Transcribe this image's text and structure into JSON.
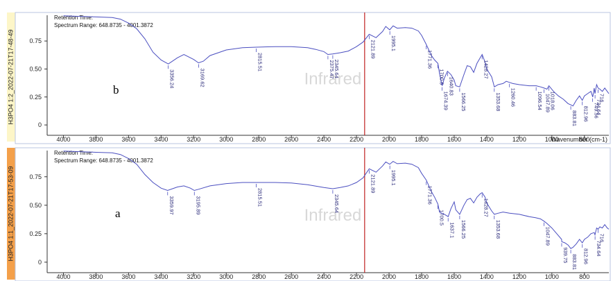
{
  "chart_data": [
    {
      "type": "line",
      "panel_id": "H3PO4 1:2_2022-07-21T17-48-49",
      "sample_label": "b",
      "header_line1": "Retention Time:",
      "header_line2": "Spectrum Range: 648.8735 - 4001.3872",
      "watermark": "Infrared",
      "xlabel": "Wavenumber (cm-1)",
      "xlim": [
        4100,
        650
      ],
      "ylim": [
        -0.08,
        0.98
      ],
      "x_ticks": [
        4000,
        3800,
        3600,
        3400,
        3200,
        3000,
        2800,
        2600,
        2400,
        2200,
        2000,
        1800,
        1600,
        1400,
        1200,
        1000,
        800
      ],
      "y_ticks": [
        "0",
        "0.25",
        "0.50",
        "0.75"
      ],
      "y_tick_values": [
        0,
        0.25,
        0.5,
        0.75
      ],
      "cursor_x": 2150,
      "series": [
        {
          "color": "#4a4ec0",
          "x": [
            4000,
            3900,
            3800,
            3700,
            3650,
            3600,
            3550,
            3500,
            3450,
            3400,
            3356,
            3300,
            3260,
            3200,
            3170,
            3140,
            3100,
            3000,
            2900,
            2816,
            2700,
            2600,
            2500,
            2450,
            2400,
            2376,
            2346,
            2300,
            2250,
            2200,
            2160,
            2122,
            2080,
            2040,
            2020,
            1996,
            1975,
            1950,
            1900,
            1860,
            1820,
            1800,
            1772,
            1740,
            1720,
            1700,
            1690,
            1674,
            1660,
            1641,
            1620,
            1600,
            1590,
            1566,
            1540,
            1520,
            1500,
            1480,
            1460,
            1440,
            1428,
            1410,
            1400,
            1370,
            1353,
            1330,
            1300,
            1280,
            1260,
            1240,
            1200,
            1140,
            1096,
            1070,
            1048,
            1030,
            1018,
            990,
            960,
            930,
            900,
            884,
            870,
            850,
            830,
            813,
            800,
            780,
            760,
            749,
            740,
            735,
            725,
            716,
            705,
            690,
            675,
            660,
            650
          ],
          "y": [
            0.975,
            0.97,
            0.965,
            0.96,
            0.945,
            0.91,
            0.86,
            0.77,
            0.65,
            0.58,
            0.545,
            0.6,
            0.63,
            0.585,
            0.555,
            0.57,
            0.62,
            0.67,
            0.69,
            0.695,
            0.7,
            0.7,
            0.69,
            0.675,
            0.655,
            0.63,
            0.635,
            0.645,
            0.66,
            0.7,
            0.74,
            0.81,
            0.78,
            0.835,
            0.88,
            0.85,
            0.885,
            0.865,
            0.87,
            0.865,
            0.84,
            0.8,
            0.72,
            0.62,
            0.58,
            0.55,
            0.46,
            0.35,
            0.42,
            0.48,
            0.45,
            0.4,
            0.35,
            0.34,
            0.45,
            0.53,
            0.52,
            0.47,
            0.55,
            0.6,
            0.63,
            0.56,
            0.5,
            0.43,
            0.34,
            0.36,
            0.37,
            0.39,
            0.38,
            0.37,
            0.36,
            0.35,
            0.35,
            0.34,
            0.33,
            0.32,
            0.35,
            0.3,
            0.26,
            0.23,
            0.19,
            0.18,
            0.17,
            0.22,
            0.26,
            0.22,
            0.26,
            0.28,
            0.3,
            0.25,
            0.33,
            0.28,
            0.36,
            0.33,
            0.32,
            0.3,
            0.33,
            0.3,
            0.28
          ]
        }
      ],
      "annotations": [
        {
          "label": "3356.24",
          "x": 3356.24,
          "y": 0.545
        },
        {
          "label": "3169.62",
          "x": 3169.62,
          "y": 0.555
        },
        {
          "label": "2815.51",
          "x": 2815.51,
          "y": 0.695
        },
        {
          "label": "2375.47",
          "x": 2375.47,
          "y": 0.63
        },
        {
          "label": "2345.64",
          "x": 2345.64,
          "y": 0.635
        },
        {
          "label": "2121.89",
          "x": 2121.89,
          "y": 0.81
        },
        {
          "label": "1995.1",
          "x": 1995.1,
          "y": 0.85
        },
        {
          "label": "1771.36",
          "x": 1771.36,
          "y": 0.72
        },
        {
          "label": "1700.5",
          "x": 1700.5,
          "y": 0.55
        },
        {
          "label": "1674.39",
          "x": 1674.39,
          "y": 0.35
        },
        {
          "label": "1640.83",
          "x": 1640.83,
          "y": 0.48
        },
        {
          "label": "1566.25",
          "x": 1566.25,
          "y": 0.34
        },
        {
          "label": "1428.27",
          "x": 1428.27,
          "y": 0.63
        },
        {
          "label": "1353.68",
          "x": 1353.68,
          "y": 0.34
        },
        {
          "label": "1260.46",
          "x": 1260.46,
          "y": 0.38
        },
        {
          "label": "1096.54",
          "x": 1096.54,
          "y": 0.35
        },
        {
          "label": "1047.89",
          "x": 1047.89,
          "y": 0.33
        },
        {
          "label": "1018.06",
          "x": 1018.06,
          "y": 0.35
        },
        {
          "label": "883.81",
          "x": 883.81,
          "y": 0.18
        },
        {
          "label": "812.96",
          "x": 812.96,
          "y": 0.22
        },
        {
          "label": "749.56",
          "x": 749.56,
          "y": 0.25
        },
        {
          "label": "734.64",
          "x": 734.64,
          "y": 0.28
        },
        {
          "label": "716",
          "x": 716,
          "y": 0.33
        }
      ]
    },
    {
      "type": "line",
      "panel_id": "H3PO4 1:1_2022-07-21T17-53-09",
      "sample_label": "a",
      "header_line1": "Retention Time:",
      "header_line2": "Spectrum Range: 648.8735 - 4001.3872",
      "watermark": "Infrared",
      "xlabel": "",
      "xlim": [
        4100,
        650
      ],
      "ylim": [
        -0.08,
        0.98
      ],
      "x_ticks": [
        4000,
        3800,
        3600,
        3400,
        3200,
        3000,
        2800,
        2600,
        2400,
        2200,
        2000,
        1800,
        1600,
        1400,
        1200,
        1000,
        800
      ],
      "y_ticks": [
        "0",
        "0.25",
        "0.50",
        "0.75"
      ],
      "y_tick_values": [
        0,
        0.25,
        0.5,
        0.75
      ],
      "cursor_x": 2150,
      "series": [
        {
          "color": "#4a4ec0",
          "x": [
            4000,
            3900,
            3800,
            3700,
            3650,
            3600,
            3550,
            3500,
            3450,
            3400,
            3360,
            3300,
            3260,
            3220,
            3196,
            3170,
            3100,
            3000,
            2900,
            2816,
            2700,
            2600,
            2500,
            2400,
            2346,
            2300,
            2250,
            2200,
            2160,
            2122,
            2080,
            2040,
            2020,
            1996,
            1975,
            1950,
            1900,
            1860,
            1820,
            1800,
            1771,
            1740,
            1720,
            1700,
            1690,
            1660,
            1637,
            1620,
            1600,
            1590,
            1566,
            1540,
            1520,
            1500,
            1480,
            1460,
            1440,
            1428,
            1410,
            1400,
            1370,
            1353,
            1330,
            1300,
            1260,
            1200,
            1140,
            1100,
            1070,
            1048,
            1030,
            1000,
            970,
            940,
            939,
            920,
            900,
            884,
            870,
            850,
            830,
            813,
            800,
            780,
            760,
            740,
            735,
            725,
            716,
            705,
            690,
            675,
            660,
            650
          ],
          "y": [
            0.975,
            0.97,
            0.965,
            0.96,
            0.945,
            0.91,
            0.86,
            0.77,
            0.7,
            0.65,
            0.63,
            0.66,
            0.67,
            0.65,
            0.63,
            0.64,
            0.67,
            0.69,
            0.7,
            0.7,
            0.7,
            0.695,
            0.68,
            0.655,
            0.645,
            0.655,
            0.67,
            0.7,
            0.74,
            0.82,
            0.79,
            0.845,
            0.88,
            0.86,
            0.885,
            0.865,
            0.87,
            0.86,
            0.83,
            0.78,
            0.72,
            0.62,
            0.57,
            0.51,
            0.44,
            0.42,
            0.4,
            0.47,
            0.53,
            0.46,
            0.42,
            0.5,
            0.55,
            0.56,
            0.52,
            0.57,
            0.6,
            0.61,
            0.57,
            0.52,
            0.45,
            0.42,
            0.43,
            0.44,
            0.43,
            0.42,
            0.4,
            0.39,
            0.38,
            0.36,
            0.34,
            0.3,
            0.25,
            0.2,
            0.18,
            0.17,
            0.15,
            0.12,
            0.13,
            0.16,
            0.2,
            0.17,
            0.2,
            0.22,
            0.25,
            0.26,
            0.24,
            0.3,
            0.29,
            0.31,
            0.3,
            0.33,
            0.3,
            0.29
          ]
        }
      ],
      "annotations": [
        {
          "label": "3359.97",
          "x": 3359.97,
          "y": 0.63
        },
        {
          "label": "3195.89",
          "x": 3195.89,
          "y": 0.63
        },
        {
          "label": "2815.51",
          "x": 2815.51,
          "y": 0.7
        },
        {
          "label": "2345.64",
          "x": 2345.64,
          "y": 0.645
        },
        {
          "label": "2121.89",
          "x": 2121.89,
          "y": 0.82
        },
        {
          "label": "1995.1",
          "x": 1995.1,
          "y": 0.86
        },
        {
          "label": "1771.36",
          "x": 1771.36,
          "y": 0.72
        },
        {
          "label": "1700.5",
          "x": 1700.5,
          "y": 0.51
        },
        {
          "label": "1637.1",
          "x": 1637.1,
          "y": 0.4
        },
        {
          "label": "1566.25",
          "x": 1566.25,
          "y": 0.42
        },
        {
          "label": "1428.27",
          "x": 1428.27,
          "y": 0.61
        },
        {
          "label": "1353.68",
          "x": 1353.68,
          "y": 0.42
        },
        {
          "label": "1047.89",
          "x": 1047.89,
          "y": 0.36
        },
        {
          "label": "939.75",
          "x": 939.75,
          "y": 0.18
        },
        {
          "label": "883.81",
          "x": 883.81,
          "y": 0.12
        },
        {
          "label": "812.96",
          "x": 812.96,
          "y": 0.17
        },
        {
          "label": "734.64",
          "x": 734.64,
          "y": 0.24
        },
        {
          "label": "716",
          "x": 716,
          "y": 0.3
        }
      ]
    }
  ],
  "colors": {
    "spectrum": "#4a4ec0",
    "cursor": "#c02020",
    "axis": "#333333",
    "side_label_bg_top": "#fdf6c8",
    "side_label_bg_bottom": "#f4a04a",
    "frame": "#b9c6e0"
  }
}
